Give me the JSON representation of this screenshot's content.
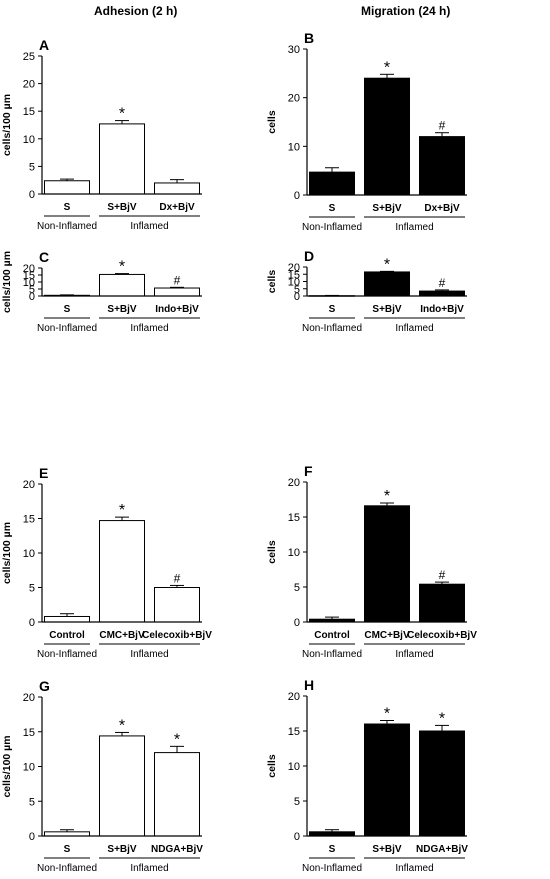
{
  "column_titles": {
    "left": "Adhesion (2 h)",
    "right": "Migration (24 h)"
  },
  "chart_data": [
    {
      "type": "bar",
      "panel": "A",
      "ylabel": "cells/100 µm",
      "ylim": [
        0,
        25
      ],
      "yticks": [
        0,
        5,
        10,
        15,
        20,
        25
      ],
      "categories": [
        "S",
        "S+BjV",
        "Dx+BjV"
      ],
      "fill": "#ffffff",
      "values": [
        2.4,
        12.7,
        2.0
      ],
      "errors": [
        0.3,
        0.6,
        0.6
      ],
      "marks": [
        "",
        "*",
        ""
      ],
      "groups": [
        {
          "label": "Non-Inflamed",
          "from": 0,
          "to": 0
        },
        {
          "label": "Inflamed",
          "from": 1,
          "to": 2
        }
      ]
    },
    {
      "type": "bar",
      "panel": "B",
      "ylabel": "cells",
      "ylim": [
        0,
        30
      ],
      "yticks": [
        0,
        10,
        20,
        30
      ],
      "categories": [
        "S",
        "S+BjV",
        "Dx+BjV"
      ],
      "fill": "#000000",
      "values": [
        4.7,
        24.0,
        12.0
      ],
      "errors": [
        0.9,
        0.8,
        0.8
      ],
      "marks": [
        "",
        "*",
        "#"
      ],
      "groups": [
        {
          "label": "Non-Inflamed",
          "from": 0,
          "to": 0
        },
        {
          "label": "Inflamed",
          "from": 1,
          "to": 2
        }
      ]
    },
    {
      "type": "bar",
      "panel": "C",
      "ylabel": "cells/100 µm",
      "ylim": [
        0,
        20
      ],
      "yticks": [
        0,
        5,
        10,
        15,
        20
      ],
      "categories": [
        "S",
        "S+BjV",
        "Indo+BjV"
      ],
      "fill": "#ffffff",
      "values": [
        0.5,
        15.4,
        5.7
      ],
      "errors": [
        0.3,
        0.6,
        0.5
      ],
      "marks": [
        "",
        "*",
        "#"
      ],
      "groups": [
        {
          "label": "Non-Inflamed",
          "from": 0,
          "to": 0
        },
        {
          "label": "Inflamed",
          "from": 1,
          "to": 2
        }
      ]
    },
    {
      "type": "bar",
      "panel": "D",
      "ylabel": "cells",
      "ylim": [
        0,
        20
      ],
      "yticks": [
        0,
        5,
        10,
        15,
        20
      ],
      "categories": [
        "S",
        "S+BjV",
        "Indo+BjV"
      ],
      "fill": "#000000",
      "values": [
        0.2,
        16.6,
        3.4
      ],
      "errors": [
        0.2,
        0.4,
        0.8
      ],
      "marks": [
        "",
        "*",
        "#"
      ],
      "groups": [
        {
          "label": "Non-Inflamed",
          "from": 0,
          "to": 0
        },
        {
          "label": "Inflamed",
          "from": 1,
          "to": 2
        }
      ]
    },
    {
      "type": "bar",
      "panel": "E",
      "ylabel": "cells/100 µm",
      "ylim": [
        0,
        20
      ],
      "yticks": [
        0,
        5,
        10,
        15,
        20
      ],
      "categories": [
        "Control",
        "CMC+BjV",
        "Celecoxib+BjV"
      ],
      "fill": "#ffffff",
      "values": [
        0.8,
        14.7,
        5.0
      ],
      "errors": [
        0.4,
        0.5,
        0.3
      ],
      "marks": [
        "",
        "*",
        "#"
      ],
      "groups": [
        {
          "label": "Non-Inflamed",
          "from": 0,
          "to": 0
        },
        {
          "label": "Inflamed",
          "from": 1,
          "to": 2
        }
      ]
    },
    {
      "type": "bar",
      "panel": "F",
      "ylabel": "cells",
      "ylim": [
        0,
        20
      ],
      "yticks": [
        0,
        5,
        10,
        15,
        20
      ],
      "categories": [
        "Control",
        "CMC+BjV",
        "Celecoxib+BjV"
      ],
      "fill": "#000000",
      "values": [
        0.4,
        16.6,
        5.4
      ],
      "errors": [
        0.3,
        0.4,
        0.3
      ],
      "marks": [
        "",
        "*",
        "#"
      ],
      "groups": [
        {
          "label": "Non-Inflamed",
          "from": 0,
          "to": 0
        },
        {
          "label": "Inflamed",
          "from": 1,
          "to": 2
        }
      ]
    },
    {
      "type": "bar",
      "panel": "G",
      "ylabel": "cells/100 µm",
      "ylim": [
        0,
        20
      ],
      "yticks": [
        0,
        5,
        10,
        15,
        20
      ],
      "categories": [
        "S",
        "S+BjV",
        "NDGA+BjV"
      ],
      "fill": "#ffffff",
      "values": [
        0.6,
        14.4,
        12.0
      ],
      "errors": [
        0.3,
        0.5,
        0.9
      ],
      "marks": [
        "",
        "*",
        "*"
      ],
      "groups": [
        {
          "label": "Non-Inflamed",
          "from": 0,
          "to": 0
        },
        {
          "label": "Inflamed",
          "from": 1,
          "to": 2
        }
      ]
    },
    {
      "type": "bar",
      "panel": "H",
      "ylabel": "cells",
      "ylim": [
        0,
        20
      ],
      "yticks": [
        0,
        5,
        10,
        15,
        20
      ],
      "categories": [
        "S",
        "S+BjV",
        "NDGA+BjV"
      ],
      "fill": "#000000",
      "values": [
        0.6,
        16.0,
        15.0
      ],
      "errors": [
        0.3,
        0.5,
        0.8
      ],
      "marks": [
        "",
        "*",
        "*"
      ],
      "groups": [
        {
          "label": "Non-Inflamed",
          "from": 0,
          "to": 0
        },
        {
          "label": "Inflamed",
          "from": 1,
          "to": 2
        }
      ]
    }
  ]
}
